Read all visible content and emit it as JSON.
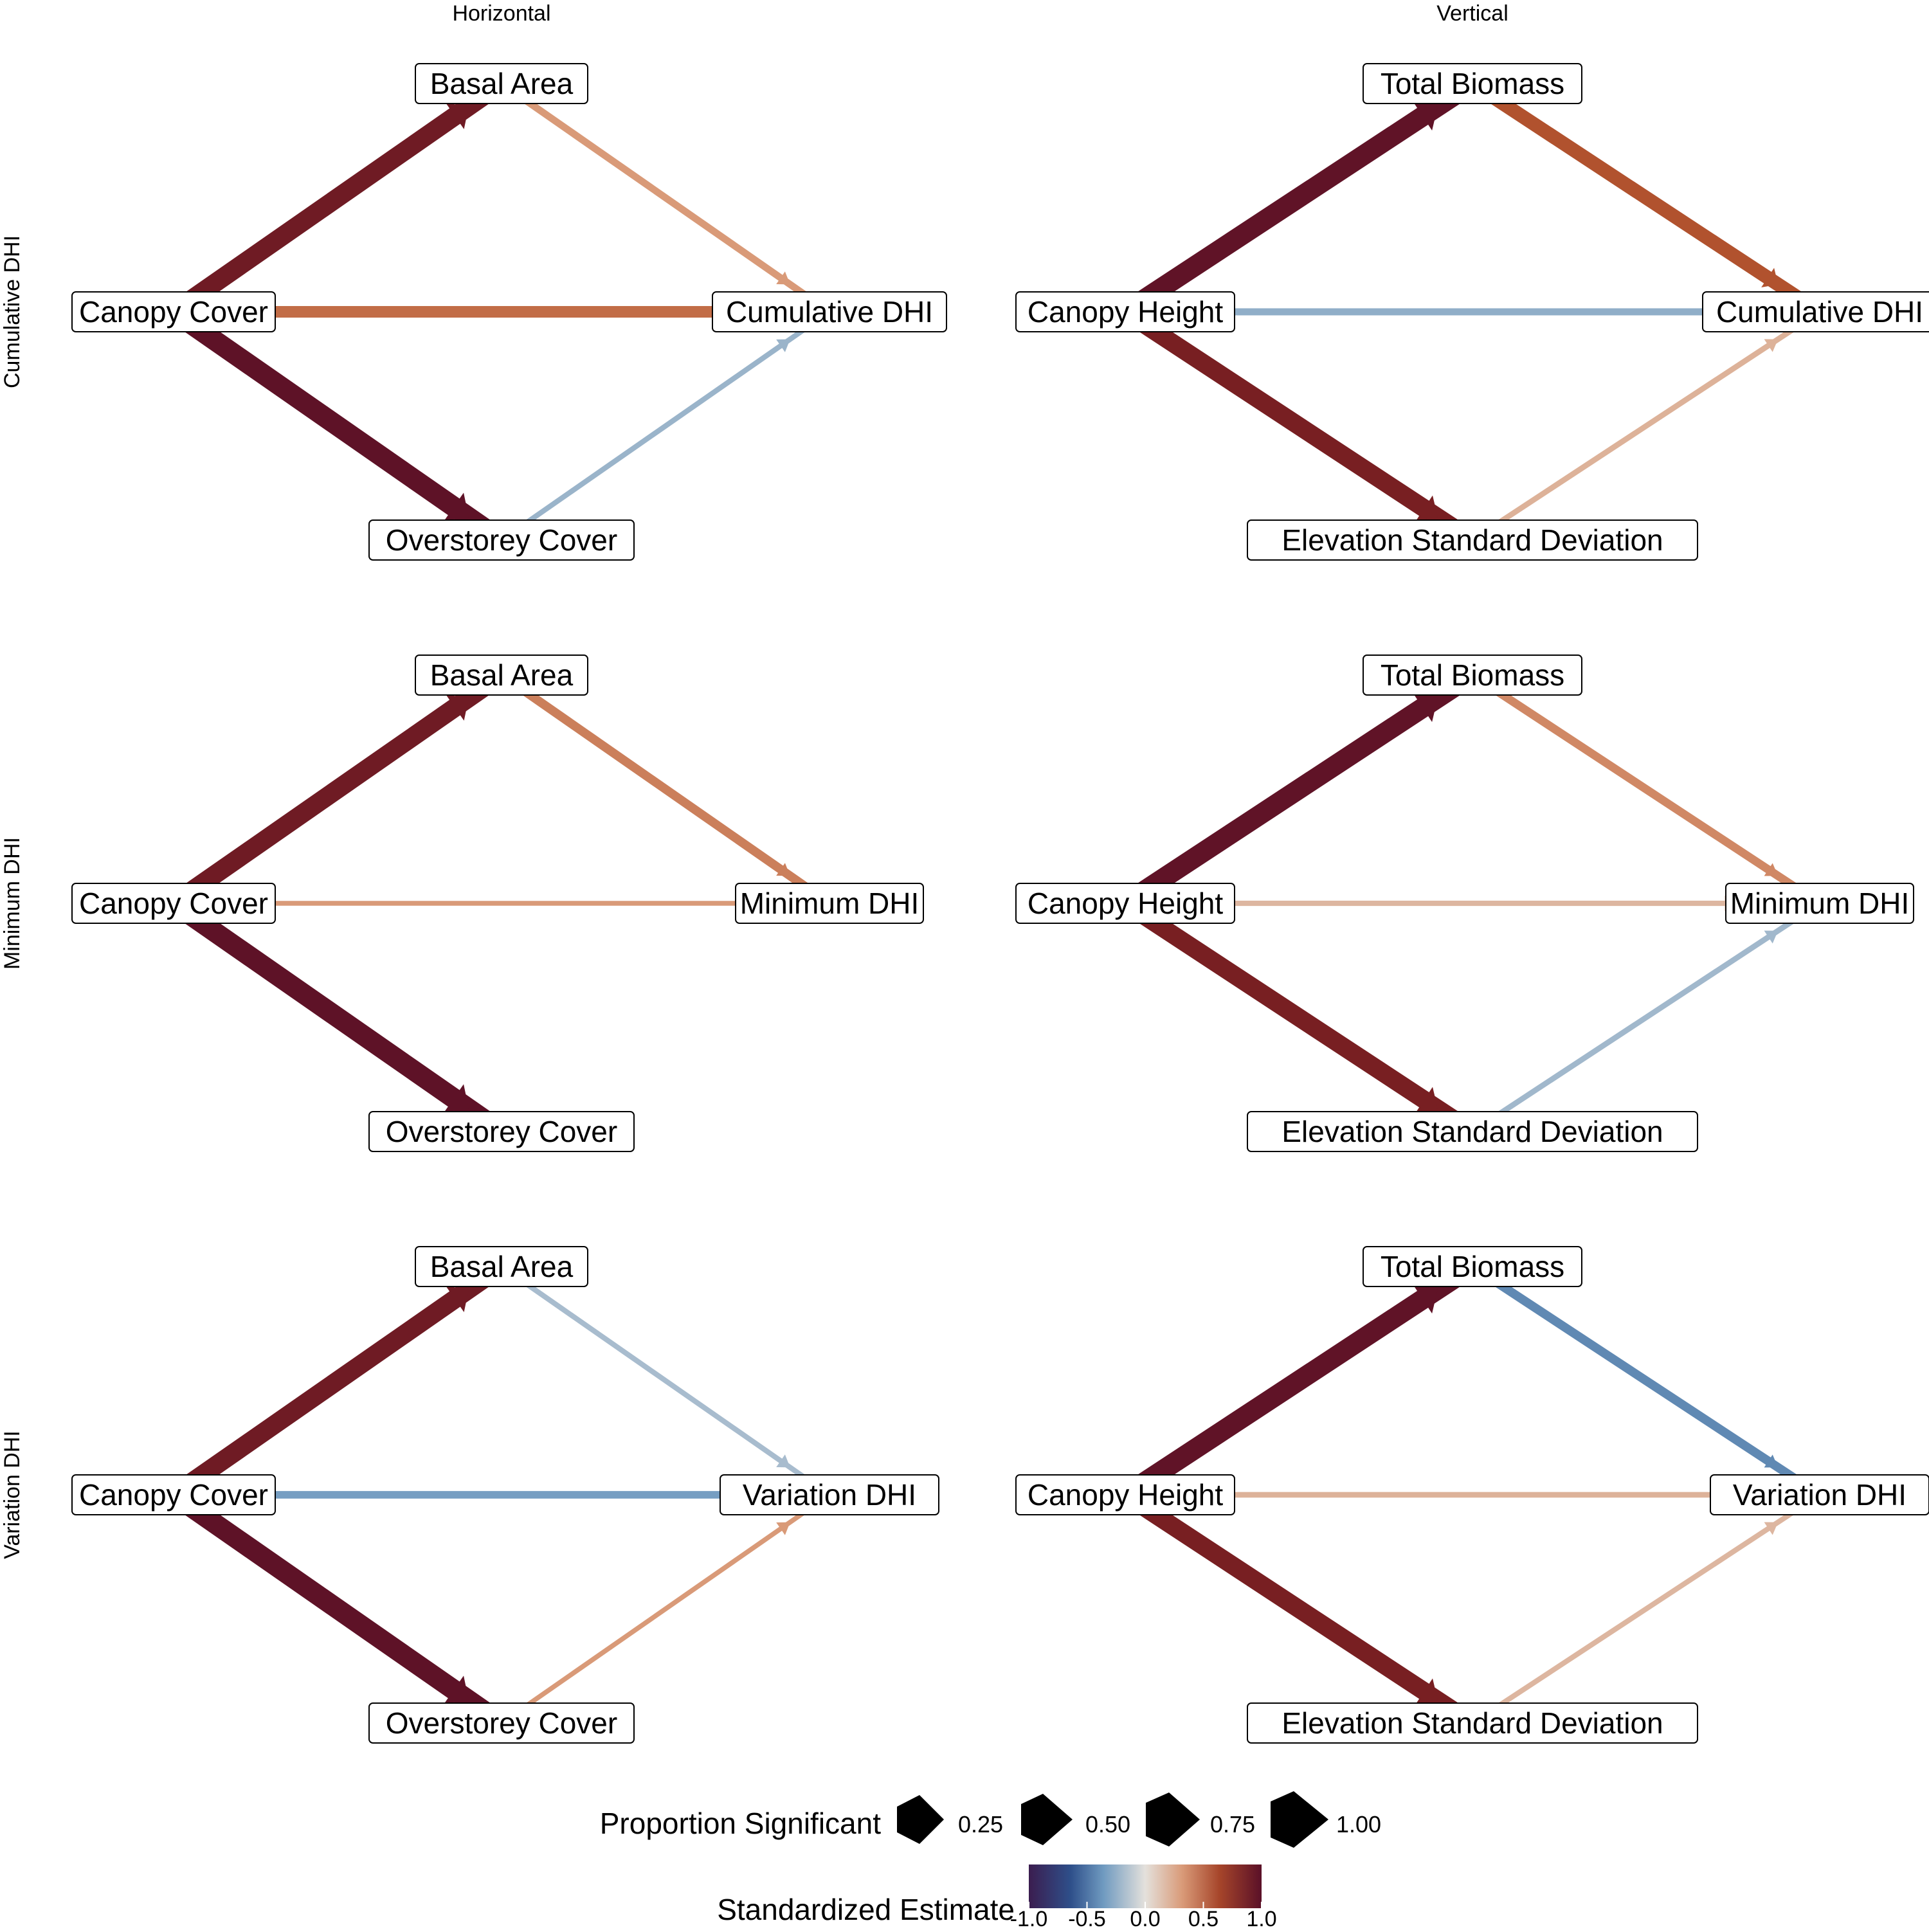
{
  "columns": [
    "Horizontal",
    "Vertical"
  ],
  "rows": [
    "Cumulative DHI",
    "Minimum DHI",
    "Variation DHI"
  ],
  "panels": [
    {
      "column": "Horizontal",
      "row": "Cumulative DHI",
      "nodes": {
        "top": "Basal Area",
        "left": "Canopy Cover",
        "right": "Cumulative DHI",
        "bottom": "Overstorey Cover"
      },
      "edges": [
        {
          "from": "left",
          "to": "top",
          "estimate": 0.9,
          "proportion": 1.0
        },
        {
          "from": "top",
          "to": "right",
          "estimate": 0.3,
          "proportion": 0.75
        },
        {
          "from": "left",
          "to": "right",
          "estimate": 0.5,
          "proportion": 1.0
        },
        {
          "from": "left",
          "to": "bottom",
          "estimate": 0.98,
          "proportion": 1.0
        },
        {
          "from": "bottom",
          "to": "right",
          "estimate": -0.22,
          "proportion": 0.5
        }
      ]
    },
    {
      "column": "Vertical",
      "row": "Cumulative DHI",
      "nodes": {
        "top": "Total Biomass",
        "left": "Canopy Height",
        "right": "Cumulative DHI",
        "bottom": "Elevation Standard Deviation"
      },
      "edges": [
        {
          "from": "left",
          "to": "top",
          "estimate": 0.97,
          "proportion": 1.0
        },
        {
          "from": "top",
          "to": "right",
          "estimate": 0.62,
          "proportion": 1.0
        },
        {
          "from": "left",
          "to": "right",
          "estimate": -0.25,
          "proportion": 1.0
        },
        {
          "from": "left",
          "to": "bottom",
          "estimate": 0.86,
          "proportion": 1.0
        },
        {
          "from": "bottom",
          "to": "right",
          "estimate": 0.2,
          "proportion": 0.75
        }
      ]
    },
    {
      "column": "Horizontal",
      "row": "Minimum DHI",
      "nodes": {
        "top": "Basal Area",
        "left": "Canopy Cover",
        "right": "Minimum DHI",
        "bottom": "Overstorey Cover"
      },
      "edges": [
        {
          "from": "left",
          "to": "top",
          "estimate": 0.9,
          "proportion": 1.0
        },
        {
          "from": "top",
          "to": "right",
          "estimate": 0.42,
          "proportion": 0.75
        },
        {
          "from": "left",
          "to": "right",
          "estimate": 0.3,
          "proportion": 0.1
        },
        {
          "from": "left",
          "to": "bottom",
          "estimate": 0.98,
          "proportion": 1.0
        }
      ]
    },
    {
      "column": "Vertical",
      "row": "Minimum DHI",
      "nodes": {
        "top": "Total Biomass",
        "left": "Canopy Height",
        "right": "Minimum DHI",
        "bottom": "Elevation Standard Deviation"
      },
      "edges": [
        {
          "from": "left",
          "to": "top",
          "estimate": 0.97,
          "proportion": 1.0
        },
        {
          "from": "top",
          "to": "right",
          "estimate": 0.38,
          "proportion": 0.75
        },
        {
          "from": "left",
          "to": "right",
          "estimate": 0.18,
          "proportion": 0.75
        },
        {
          "from": "left",
          "to": "bottom",
          "estimate": 0.86,
          "proportion": 1.0
        },
        {
          "from": "bottom",
          "to": "right",
          "estimate": -0.2,
          "proportion": 0.75
        }
      ]
    },
    {
      "column": "Horizontal",
      "row": "Variation DHI",
      "nodes": {
        "top": "Basal Area",
        "left": "Canopy Cover",
        "right": "Variation DHI",
        "bottom": "Overstorey Cover"
      },
      "edges": [
        {
          "from": "left",
          "to": "top",
          "estimate": 0.9,
          "proportion": 1.0
        },
        {
          "from": "top",
          "to": "right",
          "estimate": -0.18,
          "proportion": 0.75
        },
        {
          "from": "left",
          "to": "right",
          "estimate": -0.33,
          "proportion": 0.75
        },
        {
          "from": "left",
          "to": "bottom",
          "estimate": 0.98,
          "proportion": 1.0
        },
        {
          "from": "bottom",
          "to": "right",
          "estimate": 0.3,
          "proportion": 0.1
        }
      ]
    },
    {
      "column": "Vertical",
      "row": "Variation DHI",
      "nodes": {
        "top": "Total Biomass",
        "left": "Canopy Height",
        "right": "Variation DHI",
        "bottom": "Elevation Standard Deviation"
      },
      "edges": [
        {
          "from": "left",
          "to": "top",
          "estimate": 0.97,
          "proportion": 1.0
        },
        {
          "from": "top",
          "to": "right",
          "estimate": -0.42,
          "proportion": 0.75
        },
        {
          "from": "left",
          "to": "right",
          "estimate": 0.2,
          "proportion": 0.75
        },
        {
          "from": "left",
          "to": "bottom",
          "estimate": 0.86,
          "proportion": 1.0
        },
        {
          "from": "bottom",
          "to": "right",
          "estimate": 0.18,
          "proportion": 0.75
        }
      ]
    }
  ],
  "legend": {
    "proportion_title": "Proportion Significant",
    "proportion_keys": [
      "0.25",
      "0.50",
      "0.75",
      "1.00"
    ],
    "estimate_title": "Standardized Estimate",
    "estimate_ticks": [
      "-1.0",
      "-0.5",
      "0.0",
      "0.5",
      "1.0"
    ],
    "estimate_range": [
      -1,
      1
    ]
  },
  "colors": {
    "neg_strong": "#3b1d4f",
    "neg_mid": "#3a6a9c",
    "neutral": "#e4e1dc",
    "pos_light": "#d99a78",
    "pos_mid": "#b6562f",
    "pos_strong": "#7a2022",
    "pos_max": "#5a1028"
  }
}
